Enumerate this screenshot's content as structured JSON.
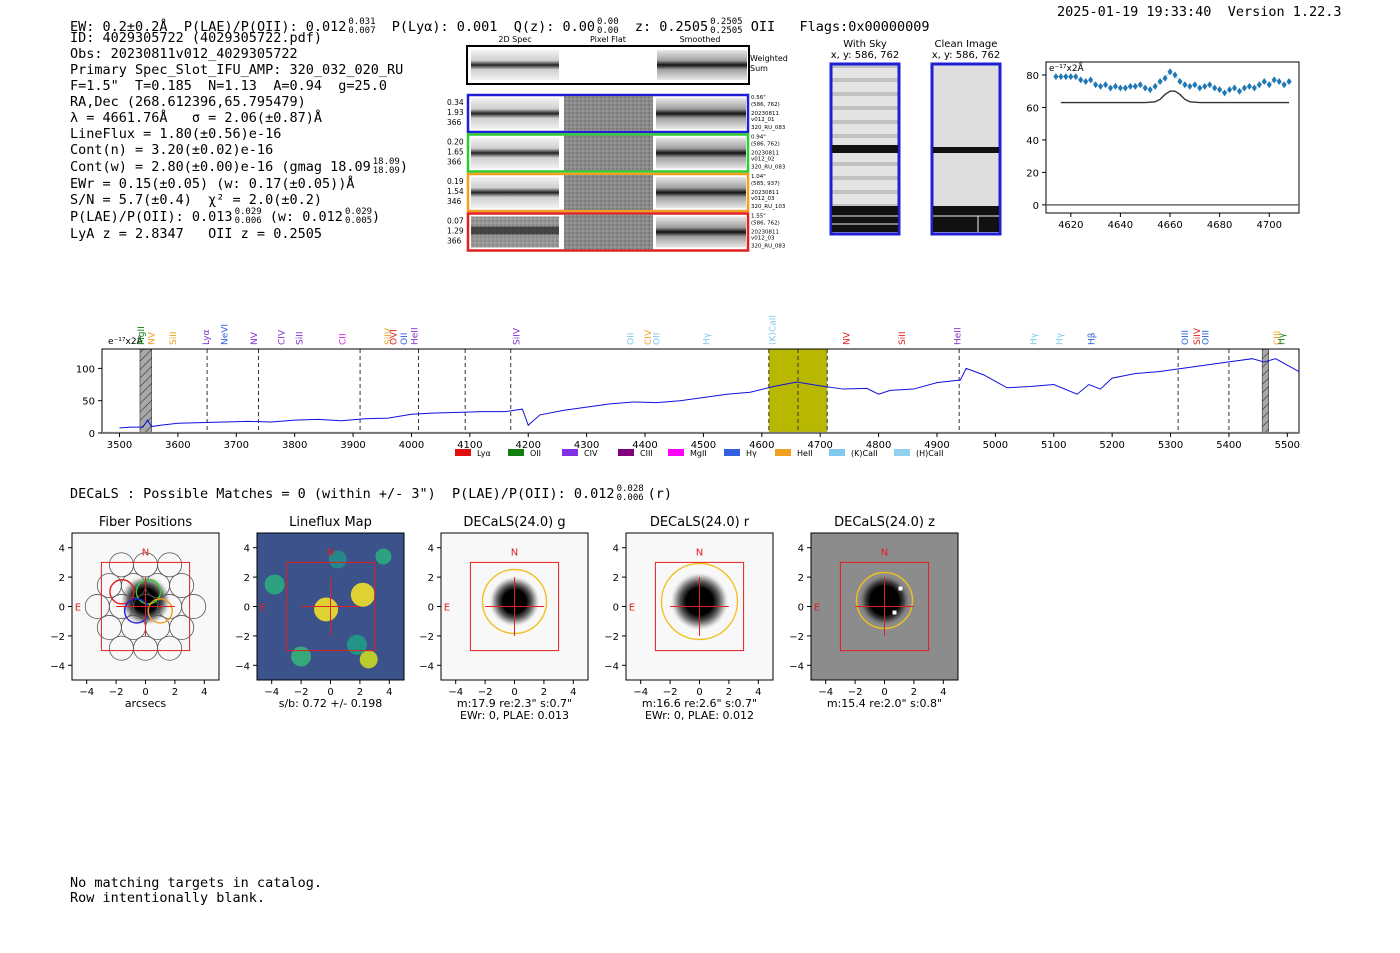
{
  "header": {
    "ew": "EW: 0.2±0.2Å",
    "plae_label": "P(LAE)/P(OII):",
    "plae_val": "0.012",
    "plae_hi": "0.031",
    "plae_lo": "0.007",
    "plya": "P(Lyα): 0.001",
    "qz_label": "Q(z): 0.00",
    "qz_hi": "0.00",
    "qz_lo": "0.00",
    "z_label": "z: 0.2505",
    "z_hi": "0.2505",
    "z_lo": "0.2505",
    "z_line": "OII",
    "flags": "Flags:0x00000009",
    "datetime": "2025-01-19 19:33:40",
    "version": "Version 1.22.3"
  },
  "info": {
    "id": "ID: 4029305722 (4029305722.pdf)",
    "obs": "Obs: 20230811v012_4029305722",
    "primary": "Primary Spec_Slot_IFU_AMP: 320_032_020_RU",
    "params": "F=1.5\"  T=0.185  N=1.13  A=0.94  g=25.0",
    "radec": "RA,Dec (268.612396,65.795479)",
    "lambda": "λ = 4661.76Å   σ = 2.06(±0.87)Å",
    "lineflux": "LineFlux = 1.80(±0.56)e-16",
    "contn": "Cont(n) = 3.20(±0.02)e-16",
    "contw": "Cont(w) = 2.80(±0.00)e-16 (gmag 18.09",
    "contw_hi": "18.09",
    "contw_lo": "18.09",
    "contw_end": ")",
    "ewr": "EWr = 0.15(±0.05) (w: 0.17(±0.05))Å",
    "sn": "S/N = 5.7(±0.4)  χ² = 2.0(±0.2)",
    "plae": "P(LAE)/P(OII): 0.013",
    "plae_hi": "0.029",
    "plae_lo": "0.006",
    "plae_w": " (w: 0.012",
    "plae_w_hi": "0.029",
    "plae_w_lo": "0.005",
    "plae_w_end": ")",
    "lya": "LyA z = 2.8347   OII z = 0.2505"
  },
  "cutouts": {
    "col_2d": "2D Spec",
    "col_flat": "Pixel Flat",
    "col_smooth": "Smoothed",
    "weighted": "Weighted",
    "sum": "Sum",
    "rows": [
      {
        "color": "#1f1fd6",
        "w": "0.34",
        "f": "1.93",
        "n": "366",
        "d": "0.56\"",
        "xy": "(586, 762)",
        "date": "20230811",
        "v": "v012_01",
        "amp": "320_RU_083"
      },
      {
        "color": "#2ecc2e",
        "w": "0.20",
        "f": "1.65",
        "n": "366",
        "d": "0.94\"",
        "xy": "(586, 762)",
        "date": "20230811",
        "v": "v012_02",
        "amp": "320_RU_083"
      },
      {
        "color": "#f0a020",
        "w": "0.19",
        "f": "1.54",
        "n": "346",
        "d": "1.04\"",
        "xy": "(585, 937)",
        "date": "20230811",
        "v": "v012_03",
        "amp": "320_RU_103"
      },
      {
        "color": "#e02020",
        "w": "0.07",
        "f": "1.29",
        "n": "366",
        "d": "1.55\"",
        "xy": "(586, 762)",
        "date": "20230811",
        "v": "v012_03",
        "amp": "320_RU_083"
      }
    ]
  },
  "sky": {
    "with_title": "With Sky",
    "with_xy": "x, y: 586, 762",
    "clean_title": "Clean Image",
    "clean_xy": "x, y: 586, 762"
  },
  "zoom_chart": {
    "unit_label": "e⁻¹⁷x2Å"
  },
  "decals": {
    "line_main": "DECaLS : Possible Matches = 0 (within +/- 3\")  P(LAE)/P(OII): 0.012",
    "hi": "0.028",
    "lo": "0.006",
    "band": "(r)"
  },
  "panels": [
    {
      "title": "Fiber Positions",
      "cap1": "arcsecs",
      "cap2": ""
    },
    {
      "title": "Lineflux Map",
      "cap1": "s/b: 0.72 +/- 0.198",
      "cap2": ""
    },
    {
      "title": "DECaLS(24.0) g",
      "cap1": "m:17.9  re:2.3\"  s:0.7\"",
      "cap2": "EWr: 0, PLAE: 0.013"
    },
    {
      "title": "DECaLS(24.0) r",
      "cap1": "m:16.6  re:2.6\"  s:0.7\"",
      "cap2": "EWr: 0, PLAE: 0.012"
    },
    {
      "title": "DECaLS(24.0) z",
      "cap1": "m:15.4  re:2.0\"  s:0.8\"",
      "cap2": ""
    }
  ],
  "compass": {
    "n": "N",
    "e": "E"
  },
  "notes": {
    "line1": "No matching targets in catalog.",
    "line2": "Row intentionally blank."
  },
  "chart_data": [
    {
      "type": "line",
      "title": "",
      "unit_label": "e⁻¹⁷x2Å",
      "xlabel": "",
      "ylabel": "",
      "xlim": [
        4610,
        4712
      ],
      "ylim": [
        -5,
        88
      ],
      "xticks": [
        4620,
        4640,
        4660,
        4680,
        4700
      ],
      "yticks": [
        0,
        20,
        40,
        60,
        80
      ],
      "series": [
        {
          "name": "data",
          "style": "diamond",
          "x": [
            4614,
            4616,
            4618,
            4620,
            4622,
            4624,
            4626,
            4628,
            4630,
            4632,
            4634,
            4636,
            4638,
            4640,
            4642,
            4644,
            4646,
            4648,
            4650,
            4652,
            4654,
            4656,
            4658,
            4660,
            4662,
            4664,
            4666,
            4668,
            4670,
            4672,
            4674,
            4676,
            4678,
            4680,
            4682,
            4684,
            4686,
            4688,
            4690,
            4692,
            4694,
            4696,
            4698,
            4700,
            4702,
            4704,
            4706,
            4708
          ],
          "y": [
            79,
            79,
            79,
            79,
            79,
            77,
            76,
            77,
            74,
            73,
            74,
            72,
            73,
            72,
            72,
            73,
            73,
            74,
            72,
            71,
            73,
            76,
            78,
            82,
            80,
            76,
            74,
            73,
            74,
            72,
            73,
            74,
            72,
            71,
            69,
            71,
            72,
            70,
            72,
            73,
            72,
            74,
            76,
            74,
            77,
            76,
            74,
            76
          ]
        },
        {
          "name": "model",
          "style": "line",
          "x": [
            4616,
            4650,
            4654,
            4656,
            4658,
            4660,
            4662,
            4664,
            4666,
            4668,
            4672,
            4708
          ],
          "y": [
            63,
            63,
            63.5,
            65,
            68,
            70,
            70,
            68,
            65,
            63.5,
            63,
            63
          ]
        },
        {
          "name": "baseline",
          "style": "line",
          "x": [
            4610,
            4712
          ],
          "y": [
            0,
            0
          ]
        }
      ]
    },
    {
      "type": "line",
      "title": "",
      "unit_label": "e⁻¹⁷x2Å",
      "xlim": [
        3470,
        5520
      ],
      "ylim": [
        0,
        130
      ],
      "xticks": [
        3500,
        3600,
        3700,
        3800,
        3900,
        4000,
        4100,
        4200,
        4300,
        4400,
        4500,
        4600,
        4700,
        4800,
        4900,
        5000,
        5100,
        5200,
        5300,
        5400,
        5500
      ],
      "yticks": [
        0,
        50,
        100
      ],
      "series": [
        {
          "name": "spectrum",
          "x": [
            3500,
            3520,
            3540,
            3548,
            3555,
            3570,
            3600,
            3640,
            3680,
            3720,
            3760,
            3800,
            3840,
            3880,
            3920,
            3960,
            4000,
            4040,
            4080,
            4120,
            4160,
            4190,
            4200,
            4220,
            4260,
            4300,
            4340,
            4380,
            4420,
            4460,
            4500,
            4540,
            4580,
            4620,
            4660,
            4700,
            4740,
            4780,
            4800,
            4820,
            4860,
            4900,
            4940,
            4950,
            4980,
            5020,
            5060,
            5100,
            5140,
            5160,
            5180,
            5200,
            5240,
            5280,
            5320,
            5360,
            5400,
            5440,
            5460,
            5480,
            5500,
            5520
          ],
          "y": [
            8,
            9,
            9,
            20,
            10,
            12,
            15,
            16,
            17,
            18,
            17,
            20,
            21,
            19,
            22,
            23,
            29,
            31,
            32,
            33,
            33,
            37,
            12,
            28,
            35,
            40,
            45,
            48,
            47,
            50,
            55,
            60,
            63,
            72,
            79,
            73,
            68,
            69,
            60,
            66,
            68,
            78,
            82,
            100,
            90,
            70,
            72,
            75,
            60,
            75,
            68,
            85,
            92,
            95,
            100,
            105,
            110,
            115,
            110,
            115,
            105,
            95
          ]
        }
      ],
      "emission_lines": [
        {
          "name": "MgII",
          "wl": 3537,
          "color": "#108010"
        },
        {
          "name": "NV",
          "wl": 3555,
          "color": "#f0a020"
        },
        {
          "name": "SiII",
          "wl": 3592,
          "color": "#f0a020"
        },
        {
          "name": "Lyα",
          "wl": 3648,
          "color": "#8030d0"
        },
        {
          "name": "NeVI",
          "wl": 3680,
          "color": "#3060e0"
        },
        {
          "name": "NV",
          "wl": 3730,
          "color": "#8030d0"
        },
        {
          "name": "CIV",
          "wl": 3777,
          "color": "#8030d0"
        },
        {
          "name": "SiII",
          "wl": 3808,
          "color": "#8030d0"
        },
        {
          "name": "CII",
          "wl": 3882,
          "color": "#e020e0"
        },
        {
          "name": "SiIV",
          "wl": 3960,
          "color": "#f0a020"
        },
        {
          "name": "OII",
          "wl": 3987,
          "color": "#3060e0"
        },
        {
          "name": "OVI",
          "wl": 3969,
          "color": "#e02020"
        },
        {
          "name": "HeII",
          "wl": 4005,
          "color": "#8030d0"
        },
        {
          "name": "SiIV",
          "wl": 4180,
          "color": "#8030d0"
        },
        {
          "name": "OII",
          "wl": 4375,
          "color": "#80c8f0"
        },
        {
          "name": "CIV",
          "wl": 4405,
          "color": "#f0a020"
        },
        {
          "name": "OII",
          "wl": 4420,
          "color": "#80c8f0"
        },
        {
          "name": "Hγ",
          "wl": 4505,
          "color": "#80c8f0"
        },
        {
          "name": "(K)CaII",
          "wl": 4618,
          "color": "#80c8f0"
        },
        {
          "name": "NV",
          "wl": 4745,
          "color": "#e02020"
        },
        {
          "name": "SiII",
          "wl": 4840,
          "color": "#e02020"
        },
        {
          "name": "HeII",
          "wl": 4935,
          "color": "#8030d0"
        },
        {
          "name": "Hγ",
          "wl": 5065,
          "color": "#80c8f0"
        },
        {
          "name": "Hγ",
          "wl": 5110,
          "color": "#80c8f0"
        },
        {
          "name": "Hβ",
          "wl": 5165,
          "color": "#3060e0"
        },
        {
          "name": "OIII",
          "wl": 5325,
          "color": "#3060e0"
        },
        {
          "name": "SiIV",
          "wl": 5345,
          "color": "#e02020"
        },
        {
          "name": "OIII",
          "wl": 5360,
          "color": "#3060e0"
        },
        {
          "name": "CIII",
          "wl": 5482,
          "color": "#f0a020"
        },
        {
          "name": "Hγ",
          "wl": 5490,
          "color": "#108010"
        }
      ],
      "dashed_lines": [
        3650,
        3738,
        3912,
        4012,
        4092,
        4170,
        4612,
        4662,
        4712,
        4938,
        5313,
        5400
      ],
      "highlight_band": [
        4612,
        4712
      ],
      "masked_regions": [
        [
          3535,
          3555
        ],
        [
          5457,
          5468
        ]
      ],
      "legend": [
        {
          "name": "Lyα",
          "color": "#e01010"
        },
        {
          "name": "OII",
          "color": "#108010"
        },
        {
          "name": "CIV",
          "color": "#8030e0"
        },
        {
          "name": "CIII",
          "color": "#800080"
        },
        {
          "name": "MgII",
          "color": "#ff00ff"
        },
        {
          "name": "Hγ",
          "color": "#3060e0"
        },
        {
          "name": "HeII",
          "color": "#f0a020"
        },
        {
          "name": "(K)CaII",
          "color": "#80c8f0"
        },
        {
          "name": "(H)CaII",
          "color": "#90d0f0"
        }
      ]
    }
  ]
}
